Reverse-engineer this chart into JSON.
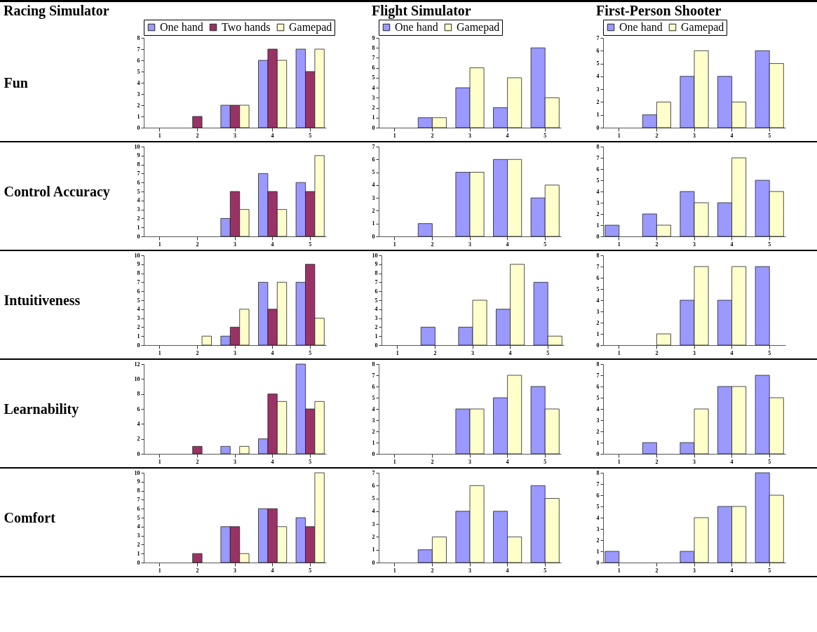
{
  "chart_data": [
    {
      "type": "bar",
      "title": "Racing Simulator",
      "ylabel": "Fun",
      "legend": "top",
      "categories": [
        "1",
        "2",
        "3",
        "4",
        "5"
      ],
      "ylim": [
        0,
        8
      ],
      "yticks": [
        0,
        1,
        2,
        3,
        4,
        5,
        6,
        7,
        8
      ],
      "series": [
        {
          "name": "One hand",
          "color": "#9999ff",
          "values": [
            0,
            0,
            2,
            6,
            7
          ]
        },
        {
          "name": "Two hands",
          "color": "#993366",
          "values": [
            0,
            1,
            2,
            7,
            5
          ]
        },
        {
          "name": "Gamepad",
          "color": "#ffffcc",
          "values": [
            0,
            0,
            2,
            6,
            7
          ]
        }
      ]
    },
    {
      "type": "bar",
      "title": "Flight Simulator",
      "legend": "top",
      "categories": [
        "1",
        "2",
        "3",
        "4",
        "5"
      ],
      "ylim": [
        0,
        9
      ],
      "yticks": [
        0,
        1,
        2,
        3,
        4,
        5,
        6,
        7,
        8,
        9
      ],
      "series": [
        {
          "name": "One hand",
          "color": "#9999ff",
          "values": [
            0,
            1,
            4,
            2,
            8
          ]
        },
        {
          "name": "Gamepad",
          "color": "#ffffcc",
          "values": [
            0,
            1,
            6,
            5,
            3
          ]
        }
      ]
    },
    {
      "type": "bar",
      "title": "First-Person Shooter",
      "legend": "top",
      "categories": [
        "1",
        "2",
        "3",
        "4",
        "5"
      ],
      "ylim": [
        0,
        7
      ],
      "yticks": [
        0,
        1,
        2,
        3,
        4,
        5,
        6,
        7
      ],
      "series": [
        {
          "name": "One hand",
          "color": "#9999ff",
          "values": [
            0,
            1,
            4,
            4,
            6
          ]
        },
        {
          "name": "Gamepad",
          "color": "#ffffcc",
          "values": [
            0,
            2,
            6,
            2,
            5
          ]
        }
      ]
    },
    {
      "type": "bar",
      "ylabel": "Control Accuracy",
      "categories": [
        "1",
        "2",
        "3",
        "4",
        "5"
      ],
      "ylim": [
        0,
        10
      ],
      "yticks": [
        0,
        1,
        2,
        3,
        4,
        5,
        6,
        7,
        8,
        9,
        10
      ],
      "series": [
        {
          "color": "#9999ff",
          "values": [
            0,
            0,
            2,
            7,
            6
          ]
        },
        {
          "color": "#993366",
          "values": [
            0,
            0,
            5,
            5,
            5
          ]
        },
        {
          "color": "#ffffcc",
          "values": [
            0,
            0,
            3,
            3,
            9
          ]
        }
      ]
    },
    {
      "type": "bar",
      "categories": [
        "1",
        "2",
        "3",
        "4",
        "5"
      ],
      "ylim": [
        0,
        7
      ],
      "yticks": [
        0,
        1,
        2,
        3,
        4,
        5,
        6,
        7
      ],
      "series": [
        {
          "color": "#9999ff",
          "values": [
            0,
            1,
            5,
            6,
            3
          ]
        },
        {
          "color": "#ffffcc",
          "values": [
            0,
            0,
            5,
            6,
            4
          ]
        }
      ]
    },
    {
      "type": "bar",
      "categories": [
        "1",
        "2",
        "3",
        "4",
        "5"
      ],
      "ylim": [
        0,
        8
      ],
      "yticks": [
        0,
        1,
        2,
        3,
        4,
        5,
        6,
        7,
        8
      ],
      "series": [
        {
          "color": "#9999ff",
          "values": [
            1,
            2,
            4,
            3,
            5
          ]
        },
        {
          "color": "#ffffcc",
          "values": [
            0,
            1,
            3,
            7,
            4
          ]
        }
      ]
    },
    {
      "type": "bar",
      "ylabel": "Intuitiveness",
      "categories": [
        "1",
        "2",
        "3",
        "4",
        "5"
      ],
      "ylim": [
        0,
        10
      ],
      "yticks": [
        0,
        1,
        2,
        3,
        4,
        5,
        6,
        7,
        8,
        9,
        10
      ],
      "series": [
        {
          "color": "#9999ff",
          "values": [
            0,
            0,
            1,
            7,
            7
          ]
        },
        {
          "color": "#993366",
          "values": [
            0,
            0,
            2,
            4,
            9
          ]
        },
        {
          "color": "#ffffcc",
          "values": [
            0,
            1,
            4,
            7,
            3
          ]
        }
      ]
    },
    {
      "type": "bar",
      "categories": [
        "1",
        "2",
        "3",
        "4",
        "5"
      ],
      "ylim": [
        0,
        10
      ],
      "yticks": [
        0,
        1,
        2,
        3,
        4,
        5,
        6,
        7,
        8,
        9,
        10
      ],
      "series": [
        {
          "color": "#9999ff",
          "values": [
            0,
            2,
            2,
            4,
            7
          ]
        },
        {
          "color": "#ffffcc",
          "values": [
            0,
            0,
            5,
            9,
            1
          ]
        }
      ]
    },
    {
      "type": "bar",
      "categories": [
        "1",
        "2",
        "3",
        "4",
        "5"
      ],
      "ylim": [
        0,
        8
      ],
      "yticks": [
        0,
        1,
        2,
        3,
        4,
        5,
        6,
        7,
        8
      ],
      "series": [
        {
          "color": "#9999ff",
          "values": [
            0,
            0,
            4,
            4,
            7
          ]
        },
        {
          "color": "#ffffcc",
          "values": [
            0,
            1,
            7,
            7,
            0
          ]
        }
      ]
    },
    {
      "type": "bar",
      "ylabel": "Learnability",
      "categories": [
        "1",
        "2",
        "3",
        "4",
        "5"
      ],
      "ylim": [
        0,
        12
      ],
      "yticks": [
        0,
        2,
        4,
        6,
        8,
        10,
        12
      ],
      "series": [
        {
          "color": "#9999ff",
          "values": [
            0,
            0,
            1,
            2,
            12
          ]
        },
        {
          "color": "#993366",
          "values": [
            0,
            1,
            0,
            8,
            6
          ]
        },
        {
          "color": "#ffffcc",
          "values": [
            0,
            0,
            1,
            7,
            7
          ]
        }
      ]
    },
    {
      "type": "bar",
      "categories": [
        "1",
        "2",
        "3",
        "4",
        "5"
      ],
      "ylim": [
        0,
        8
      ],
      "yticks": [
        0,
        1,
        2,
        3,
        4,
        5,
        6,
        7,
        8
      ],
      "series": [
        {
          "color": "#9999ff",
          "values": [
            0,
            0,
            4,
            5,
            6
          ]
        },
        {
          "color": "#ffffcc",
          "values": [
            0,
            0,
            4,
            7,
            4
          ]
        }
      ]
    },
    {
      "type": "bar",
      "categories": [
        "1",
        "2",
        "3",
        "4",
        "5"
      ],
      "ylim": [
        0,
        8
      ],
      "yticks": [
        0,
        1,
        2,
        3,
        4,
        5,
        6,
        7,
        8
      ],
      "series": [
        {
          "color": "#9999ff",
          "values": [
            0,
            1,
            1,
            6,
            7
          ]
        },
        {
          "color": "#ffffcc",
          "values": [
            0,
            0,
            4,
            6,
            5
          ]
        }
      ]
    },
    {
      "type": "bar",
      "ylabel": "Comfort",
      "categories": [
        "1",
        "2",
        "3",
        "4",
        "5"
      ],
      "ylim": [
        0,
        10
      ],
      "yticks": [
        0,
        1,
        2,
        3,
        4,
        5,
        6,
        7,
        8,
        9,
        10
      ],
      "series": [
        {
          "color": "#9999ff",
          "values": [
            0,
            0,
            4,
            6,
            5
          ]
        },
        {
          "color": "#993366",
          "values": [
            0,
            1,
            4,
            6,
            4
          ]
        },
        {
          "color": "#ffffcc",
          "values": [
            0,
            0,
            1,
            4,
            10
          ]
        }
      ]
    },
    {
      "type": "bar",
      "categories": [
        "1",
        "2",
        "3",
        "4",
        "5"
      ],
      "ylim": [
        0,
        7
      ],
      "yticks": [
        0,
        1,
        2,
        3,
        4,
        5,
        6,
        7
      ],
      "series": [
        {
          "color": "#9999ff",
          "values": [
            0,
            1,
            4,
            4,
            6
          ]
        },
        {
          "color": "#ffffcc",
          "values": [
            0,
            2,
            6,
            2,
            5
          ]
        }
      ]
    },
    {
      "type": "bar",
      "categories": [
        "1",
        "2",
        "3",
        "4",
        "5"
      ],
      "ylim": [
        0,
        8
      ],
      "yticks": [
        0,
        1,
        2,
        3,
        4,
        5,
        6,
        7,
        8
      ],
      "series": [
        {
          "color": "#9999ff",
          "values": [
            1,
            0,
            1,
            5,
            8
          ]
        },
        {
          "color": "#ffffcc",
          "values": [
            0,
            0,
            4,
            5,
            6
          ]
        }
      ]
    }
  ]
}
